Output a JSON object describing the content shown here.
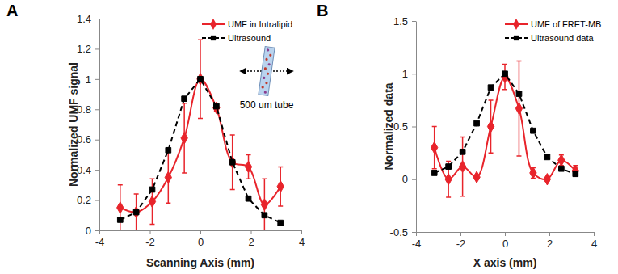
{
  "chart_data": [
    {
      "type": "line",
      "panel_label": "A",
      "annotation": "500 um tube",
      "x_label": "Scanning Axis (mm)",
      "y_label": "Normalized UMF signal",
      "x": [
        -3.175,
        -2.54,
        -1.905,
        -1.27,
        -0.635,
        0,
        0.635,
        1.27,
        1.905,
        2.54,
        3.175
      ],
      "xlim": [
        -4,
        4
      ],
      "xticks": [
        -4,
        -2,
        0,
        2,
        4
      ],
      "ylim": [
        0,
        1.4
      ],
      "yticks": [
        0,
        0.2,
        0.4,
        0.6,
        0.8,
        1,
        1.2,
        1.4
      ],
      "legend": "upper right",
      "series": [
        {
          "name": "UMF in Intralipid",
          "color": "#e8242b",
          "marker": "diamond",
          "line_style": "solid",
          "values": [
            0.15,
            0.12,
            0.19,
            0.35,
            0.61,
            1.0,
            0.81,
            0.45,
            0.42,
            0.17,
            0.29
          ],
          "errors": [
            0.15,
            0.12,
            0.15,
            0.17,
            0.23,
            0.26,
            0.02,
            0.18,
            0.08,
            0.17,
            0.13
          ]
        },
        {
          "name": "Ultrasound",
          "color": "#000000",
          "marker": "square",
          "line_style": "dashed",
          "values": [
            0.07,
            0.12,
            0.27,
            0.53,
            0.87,
            1.0,
            0.82,
            0.45,
            0.21,
            0.1,
            0.05
          ]
        }
      ]
    },
    {
      "type": "line",
      "panel_label": "B",
      "x_label": "X axis (mm)",
      "y_label": "Normalized data",
      "x": [
        -3.175,
        -2.54,
        -1.905,
        -1.27,
        -0.635,
        0,
        0.635,
        1.27,
        1.905,
        2.54,
        3.175
      ],
      "xlim": [
        -4,
        4
      ],
      "xticks": [
        -4,
        -2,
        0,
        2,
        4
      ],
      "ylim": [
        -0.5,
        1.5
      ],
      "yticks": [
        -0.5,
        0,
        0.5,
        1,
        1.5
      ],
      "legend": "upper right",
      "series": [
        {
          "name": "UMF of FRET-MB",
          "color": "#e8242b",
          "marker": "diamond",
          "line_style": "solid",
          "values": [
            0.3,
            0.0,
            0.12,
            0.02,
            0.5,
            0.97,
            0.67,
            0.06,
            0.0,
            0.18,
            0.08
          ],
          "errors": [
            0.2,
            0.17,
            0.28,
            0.02,
            0.25,
            0.12,
            0.45,
            0.05,
            0.02,
            0.05,
            0.05
          ]
        },
        {
          "name": "Ultrasound data",
          "color": "#000000",
          "marker": "square",
          "line_style": "dashed",
          "values": [
            0.06,
            0.12,
            0.26,
            0.53,
            0.87,
            1.0,
            0.81,
            0.46,
            0.21,
            0.1,
            0.05
          ]
        }
      ]
    }
  ]
}
